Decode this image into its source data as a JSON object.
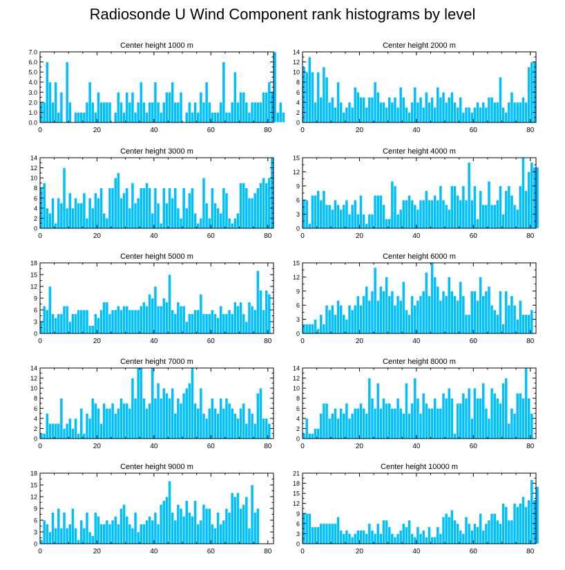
{
  "title": "Radiosonde U Wind Component rank histograms by level",
  "colors": {
    "bar": "#00bfff",
    "bar_edge": "#ffffff",
    "axis": "#000000"
  },
  "chart_data": [
    {
      "type": "bar",
      "title": "Center height 1000 m",
      "xlim": [
        0,
        82
      ],
      "ylim": [
        0,
        7
      ],
      "xticks": [
        "0",
        "20",
        "40",
        "60",
        "80"
      ],
      "xtick_values": [
        0,
        20,
        40,
        60,
        80
      ],
      "yticks": [
        "0.0",
        "1.0",
        "2.0",
        "3.0",
        "4.0",
        "5.0",
        "6.0",
        "7.0"
      ],
      "ytick_values": [
        0,
        1,
        2,
        3,
        4,
        5,
        6,
        7
      ],
      "values": [
        2,
        2,
        6,
        4,
        2,
        4,
        1,
        3,
        0,
        6,
        2,
        0,
        1,
        1,
        1,
        1,
        2,
        4,
        2,
        1,
        3,
        2,
        2,
        2,
        2,
        0,
        1,
        3,
        2,
        1,
        3,
        2,
        3,
        1,
        2,
        4,
        2,
        1,
        2,
        2,
        4,
        2,
        1,
        2,
        3,
        3,
        4,
        2,
        2,
        3,
        0,
        1,
        2,
        1,
        2,
        1,
        3,
        2,
        4,
        2,
        1,
        1,
        1,
        2,
        6,
        1,
        1,
        2,
        5,
        2,
        3,
        3,
        2,
        1,
        2,
        2,
        2,
        2,
        3,
        3,
        4,
        3,
        7,
        1,
        2,
        1
      ]
    },
    {
      "type": "bar",
      "title": "Center height 2000 m",
      "xlim": [
        0,
        82
      ],
      "ylim": [
        0,
        14
      ],
      "xticks": [
        "0",
        "20",
        "40",
        "60",
        "80"
      ],
      "xtick_values": [
        0,
        20,
        40,
        60,
        80
      ],
      "yticks": [
        "0",
        "2",
        "4",
        "6",
        "8",
        "10",
        "12",
        "14"
      ],
      "ytick_values": [
        0,
        2,
        4,
        6,
        8,
        10,
        12,
        14
      ],
      "values": [
        11,
        10,
        13,
        10,
        4,
        10,
        5,
        11,
        9,
        4,
        5,
        3,
        8,
        4,
        2,
        3,
        4,
        3,
        7,
        6,
        5,
        5,
        3,
        5,
        5,
        8,
        6,
        4,
        4,
        3,
        5,
        4,
        5,
        3,
        7,
        5,
        3,
        2,
        4,
        7,
        4,
        5,
        3,
        6,
        4,
        5,
        3,
        7,
        5,
        6,
        4,
        5,
        6,
        4,
        3,
        5,
        2,
        3,
        3,
        2,
        3,
        4,
        3,
        4,
        3,
        5,
        5,
        4,
        4,
        9,
        3,
        2,
        4,
        6,
        4,
        4,
        4,
        5,
        4,
        11,
        12,
        12
      ]
    },
    {
      "type": "bar",
      "title": "Center height 3000 m",
      "xlim": [
        0,
        82
      ],
      "ylim": [
        0,
        14
      ],
      "xticks": [
        "0",
        "20",
        "40",
        "60",
        "80"
      ],
      "xtick_values": [
        0,
        20,
        40,
        60,
        80
      ],
      "yticks": [
        "0",
        "2",
        "4",
        "6",
        "8",
        "10",
        "12",
        "14"
      ],
      "ytick_values": [
        0,
        2,
        4,
        6,
        8,
        10,
        12,
        14
      ],
      "values": [
        8,
        9,
        4,
        3,
        6,
        1,
        6,
        5,
        12,
        4,
        7,
        4,
        6,
        5,
        5,
        7,
        2,
        6,
        4,
        7,
        6,
        8,
        3,
        2,
        8,
        8,
        10,
        11,
        6,
        7,
        8,
        4,
        9,
        5,
        6,
        8,
        8,
        9,
        8,
        3,
        8,
        5,
        1,
        8,
        5,
        8,
        6,
        8,
        4,
        2,
        8,
        4,
        7,
        8,
        3,
        1,
        2,
        10,
        5,
        2,
        8,
        5,
        4,
        3,
        8,
        7,
        2,
        1,
        2,
        3,
        9,
        9,
        8,
        6,
        6,
        7,
        8,
        9,
        10,
        9,
        10,
        14
      ]
    },
    {
      "type": "bar",
      "title": "Center height 4000 m",
      "xlim": [
        0,
        82
      ],
      "ylim": [
        0,
        15
      ],
      "xticks": [
        "0",
        "20",
        "40",
        "60",
        "80"
      ],
      "xtick_values": [
        0,
        20,
        40,
        60,
        80
      ],
      "yticks": [
        "0",
        "3",
        "6",
        "9",
        "12",
        "15"
      ],
      "ytick_values": [
        0,
        3,
        6,
        9,
        12,
        15
      ],
      "values": [
        6,
        6,
        1,
        7,
        7,
        8,
        6,
        8,
        5,
        5,
        4,
        6,
        5,
        4,
        5,
        6,
        3,
        5,
        6,
        3,
        7,
        3,
        1,
        3,
        3,
        7,
        7,
        7,
        5,
        2,
        2,
        10,
        9,
        3,
        4,
        6,
        6,
        7,
        6,
        5,
        4,
        6,
        6,
        8,
        6,
        6,
        7,
        6,
        9,
        6,
        5,
        4,
        9,
        9,
        7,
        6,
        9,
        6,
        14,
        6,
        9,
        2,
        8,
        5,
        5,
        10,
        5,
        5,
        6,
        9,
        3,
        8,
        9,
        7,
        5,
        4,
        9,
        15,
        8,
        12,
        14,
        13,
        13
      ]
    },
    {
      "type": "bar",
      "title": "Center height 5000 m",
      "xlim": [
        0,
        82
      ],
      "ylim": [
        0,
        18
      ],
      "xticks": [
        "0",
        "20",
        "40",
        "60",
        "80"
      ],
      "xtick_values": [
        0,
        20,
        40,
        60,
        80
      ],
      "yticks": [
        "0",
        "3",
        "6",
        "9",
        "12",
        "15",
        "18"
      ],
      "ytick_values": [
        0,
        3,
        6,
        9,
        12,
        15,
        18
      ],
      "values": [
        3,
        7,
        6,
        12,
        5,
        4,
        5,
        5,
        7,
        7,
        3,
        5,
        5,
        6,
        6,
        6,
        6,
        2,
        2,
        5,
        4,
        6,
        8,
        8,
        5,
        6,
        6,
        7,
        6,
        7,
        7,
        6,
        6,
        6,
        6,
        7,
        8,
        7,
        10,
        9,
        12,
        7,
        7,
        9,
        8,
        15,
        6,
        5,
        8,
        7,
        7,
        3,
        5,
        5,
        6,
        6,
        10,
        5,
        5,
        5,
        6,
        5,
        4,
        7,
        5,
        5,
        6,
        5,
        8,
        7,
        8,
        5,
        3,
        8,
        7,
        6,
        16,
        11,
        6,
        11,
        10
      ]
    },
    {
      "type": "bar",
      "title": "Center height 6000 m",
      "xlim": [
        0,
        82
      ],
      "ylim": [
        0,
        15
      ],
      "xticks": [
        "0",
        "20",
        "40",
        "60",
        "80"
      ],
      "xtick_values": [
        0,
        20,
        40,
        60,
        80
      ],
      "yticks": [
        "0",
        "3",
        "6",
        "9",
        "12",
        "15"
      ],
      "ytick_values": [
        0,
        3,
        6,
        9,
        12,
        15
      ],
      "values": [
        2,
        2,
        2,
        2,
        3,
        1,
        4,
        2,
        6,
        5,
        6,
        4,
        7,
        6,
        4,
        3,
        6,
        5,
        6,
        8,
        6,
        8,
        10,
        7,
        9,
        14,
        7,
        10,
        9,
        12,
        8,
        9,
        6,
        8,
        7,
        11,
        5,
        4,
        8,
        6,
        7,
        8,
        9,
        13,
        8,
        15,
        12,
        10,
        7,
        9,
        8,
        12,
        9,
        8,
        7,
        11,
        8,
        4,
        4,
        9,
        9,
        7,
        12,
        8,
        9,
        10,
        6,
        5,
        4,
        9,
        2,
        9,
        6,
        8,
        6,
        3,
        7,
        4,
        4,
        4,
        5
      ]
    },
    {
      "type": "bar",
      "title": "Center height 7000 m",
      "xlim": [
        0,
        82
      ],
      "ylim": [
        0,
        14
      ],
      "xticks": [
        "0",
        "20",
        "40",
        "60",
        "80"
      ],
      "xtick_values": [
        0,
        20,
        40,
        60,
        80
      ],
      "yticks": [
        "0",
        "2",
        "4",
        "6",
        "8",
        "10",
        "12",
        "14"
      ],
      "ytick_values": [
        0,
        2,
        4,
        6,
        8,
        10,
        12,
        14
      ],
      "values": [
        1,
        1,
        5,
        3,
        3,
        3,
        3,
        8,
        2,
        3,
        4,
        2,
        4,
        1,
        6,
        1,
        5,
        4,
        8,
        7,
        6,
        3,
        7,
        6,
        6,
        7,
        5,
        6,
        8,
        7,
        7,
        6,
        12,
        8,
        14,
        14,
        8,
        6,
        7,
        14,
        8,
        11,
        8,
        10,
        9,
        8,
        10,
        5,
        8,
        7,
        9,
        10,
        11,
        14,
        7,
        6,
        10,
        5,
        4,
        6,
        8,
        6,
        5,
        8,
        6,
        8,
        7,
        6,
        5,
        4,
        6,
        7,
        3,
        6,
        5,
        3,
        9,
        10,
        4,
        4,
        3
      ]
    },
    {
      "type": "bar",
      "title": "Center height 8000 m",
      "xlim": [
        0,
        82
      ],
      "ylim": [
        0,
        14
      ],
      "xticks": [
        "0",
        "20",
        "40",
        "60",
        "80"
      ],
      "xtick_values": [
        0,
        20,
        40,
        60,
        80
      ],
      "yticks": [
        "0",
        "2",
        "4",
        "6",
        "8",
        "10",
        "12",
        "14"
      ],
      "ytick_values": [
        0,
        2,
        4,
        6,
        8,
        10,
        12,
        14
      ],
      "values": [
        1,
        4,
        1,
        1,
        2,
        2,
        5,
        7,
        7,
        4,
        5,
        6,
        4,
        6,
        5,
        7,
        4,
        5,
        6,
        6,
        7,
        6,
        5,
        12,
        8,
        6,
        11,
        6,
        8,
        7,
        7,
        6,
        6,
        8,
        6,
        5,
        11,
        5,
        7,
        12,
        8,
        5,
        9,
        7,
        6,
        6,
        8,
        6,
        6,
        9,
        8,
        10,
        8,
        1,
        7,
        7,
        9,
        8,
        10,
        4,
        10,
        8,
        8,
        11,
        6,
        4,
        10,
        9,
        8,
        7,
        11,
        12,
        3,
        6,
        5,
        9,
        9,
        8,
        14,
        8,
        5
      ]
    },
    {
      "type": "bar",
      "title": "Center height 9000 m",
      "xlim": [
        0,
        82
      ],
      "ylim": [
        0,
        18
      ],
      "xticks": [
        "0",
        "20",
        "40",
        "60",
        "80"
      ],
      "xtick_values": [
        0,
        20,
        40,
        60,
        80
      ],
      "yticks": [
        "0",
        "3",
        "6",
        "9",
        "12",
        "15",
        "18"
      ],
      "ytick_values": [
        0,
        3,
        6,
        9,
        12,
        15,
        18
      ],
      "values": [
        1,
        6,
        5,
        3,
        8,
        4,
        9,
        4,
        8,
        4,
        5,
        9,
        4,
        1,
        6,
        4,
        8,
        3,
        2,
        8,
        7,
        5,
        5,
        6,
        5,
        6,
        7,
        5,
        9,
        10,
        7,
        5,
        4,
        8,
        3,
        5,
        5,
        6,
        7,
        6,
        8,
        5,
        10,
        11,
        12,
        16,
        8,
        6,
        10,
        9,
        7,
        11,
        8,
        7,
        11,
        5,
        6,
        10,
        9,
        9,
        5,
        4,
        8,
        5,
        6,
        9,
        8,
        13,
        12,
        13,
        9,
        10,
        12,
        4,
        15,
        8,
        9
      ]
    },
    {
      "type": "bar",
      "title": "Center height 10000 m",
      "xlim": [
        0,
        82
      ],
      "ylim": [
        0,
        21
      ],
      "xticks": [
        "0",
        "20",
        "40",
        "60",
        "80"
      ],
      "xtick_values": [
        0,
        20,
        40,
        60,
        80
      ],
      "yticks": [
        "0",
        "3",
        "6",
        "9",
        "12",
        "15",
        "18",
        "21"
      ],
      "ytick_values": [
        0,
        3,
        6,
        9,
        12,
        15,
        18,
        21
      ],
      "values": [
        9,
        9,
        9,
        5,
        5,
        5,
        6,
        6,
        6,
        6,
        6,
        6,
        8,
        4,
        3,
        4,
        3,
        2,
        3,
        4,
        4,
        4,
        3,
        6,
        4,
        3,
        6,
        3,
        7,
        7,
        5,
        3,
        2,
        3,
        4,
        6,
        5,
        7,
        3,
        2,
        5,
        3,
        4,
        2,
        5,
        2,
        2,
        5,
        3,
        8,
        9,
        8,
        10,
        7,
        6,
        4,
        3,
        8,
        6,
        4,
        6,
        5,
        9,
        4,
        6,
        7,
        9,
        9,
        7,
        6,
        12,
        11,
        7,
        7,
        12,
        11,
        12,
        14,
        11,
        13,
        19,
        13,
        17
      ]
    }
  ]
}
